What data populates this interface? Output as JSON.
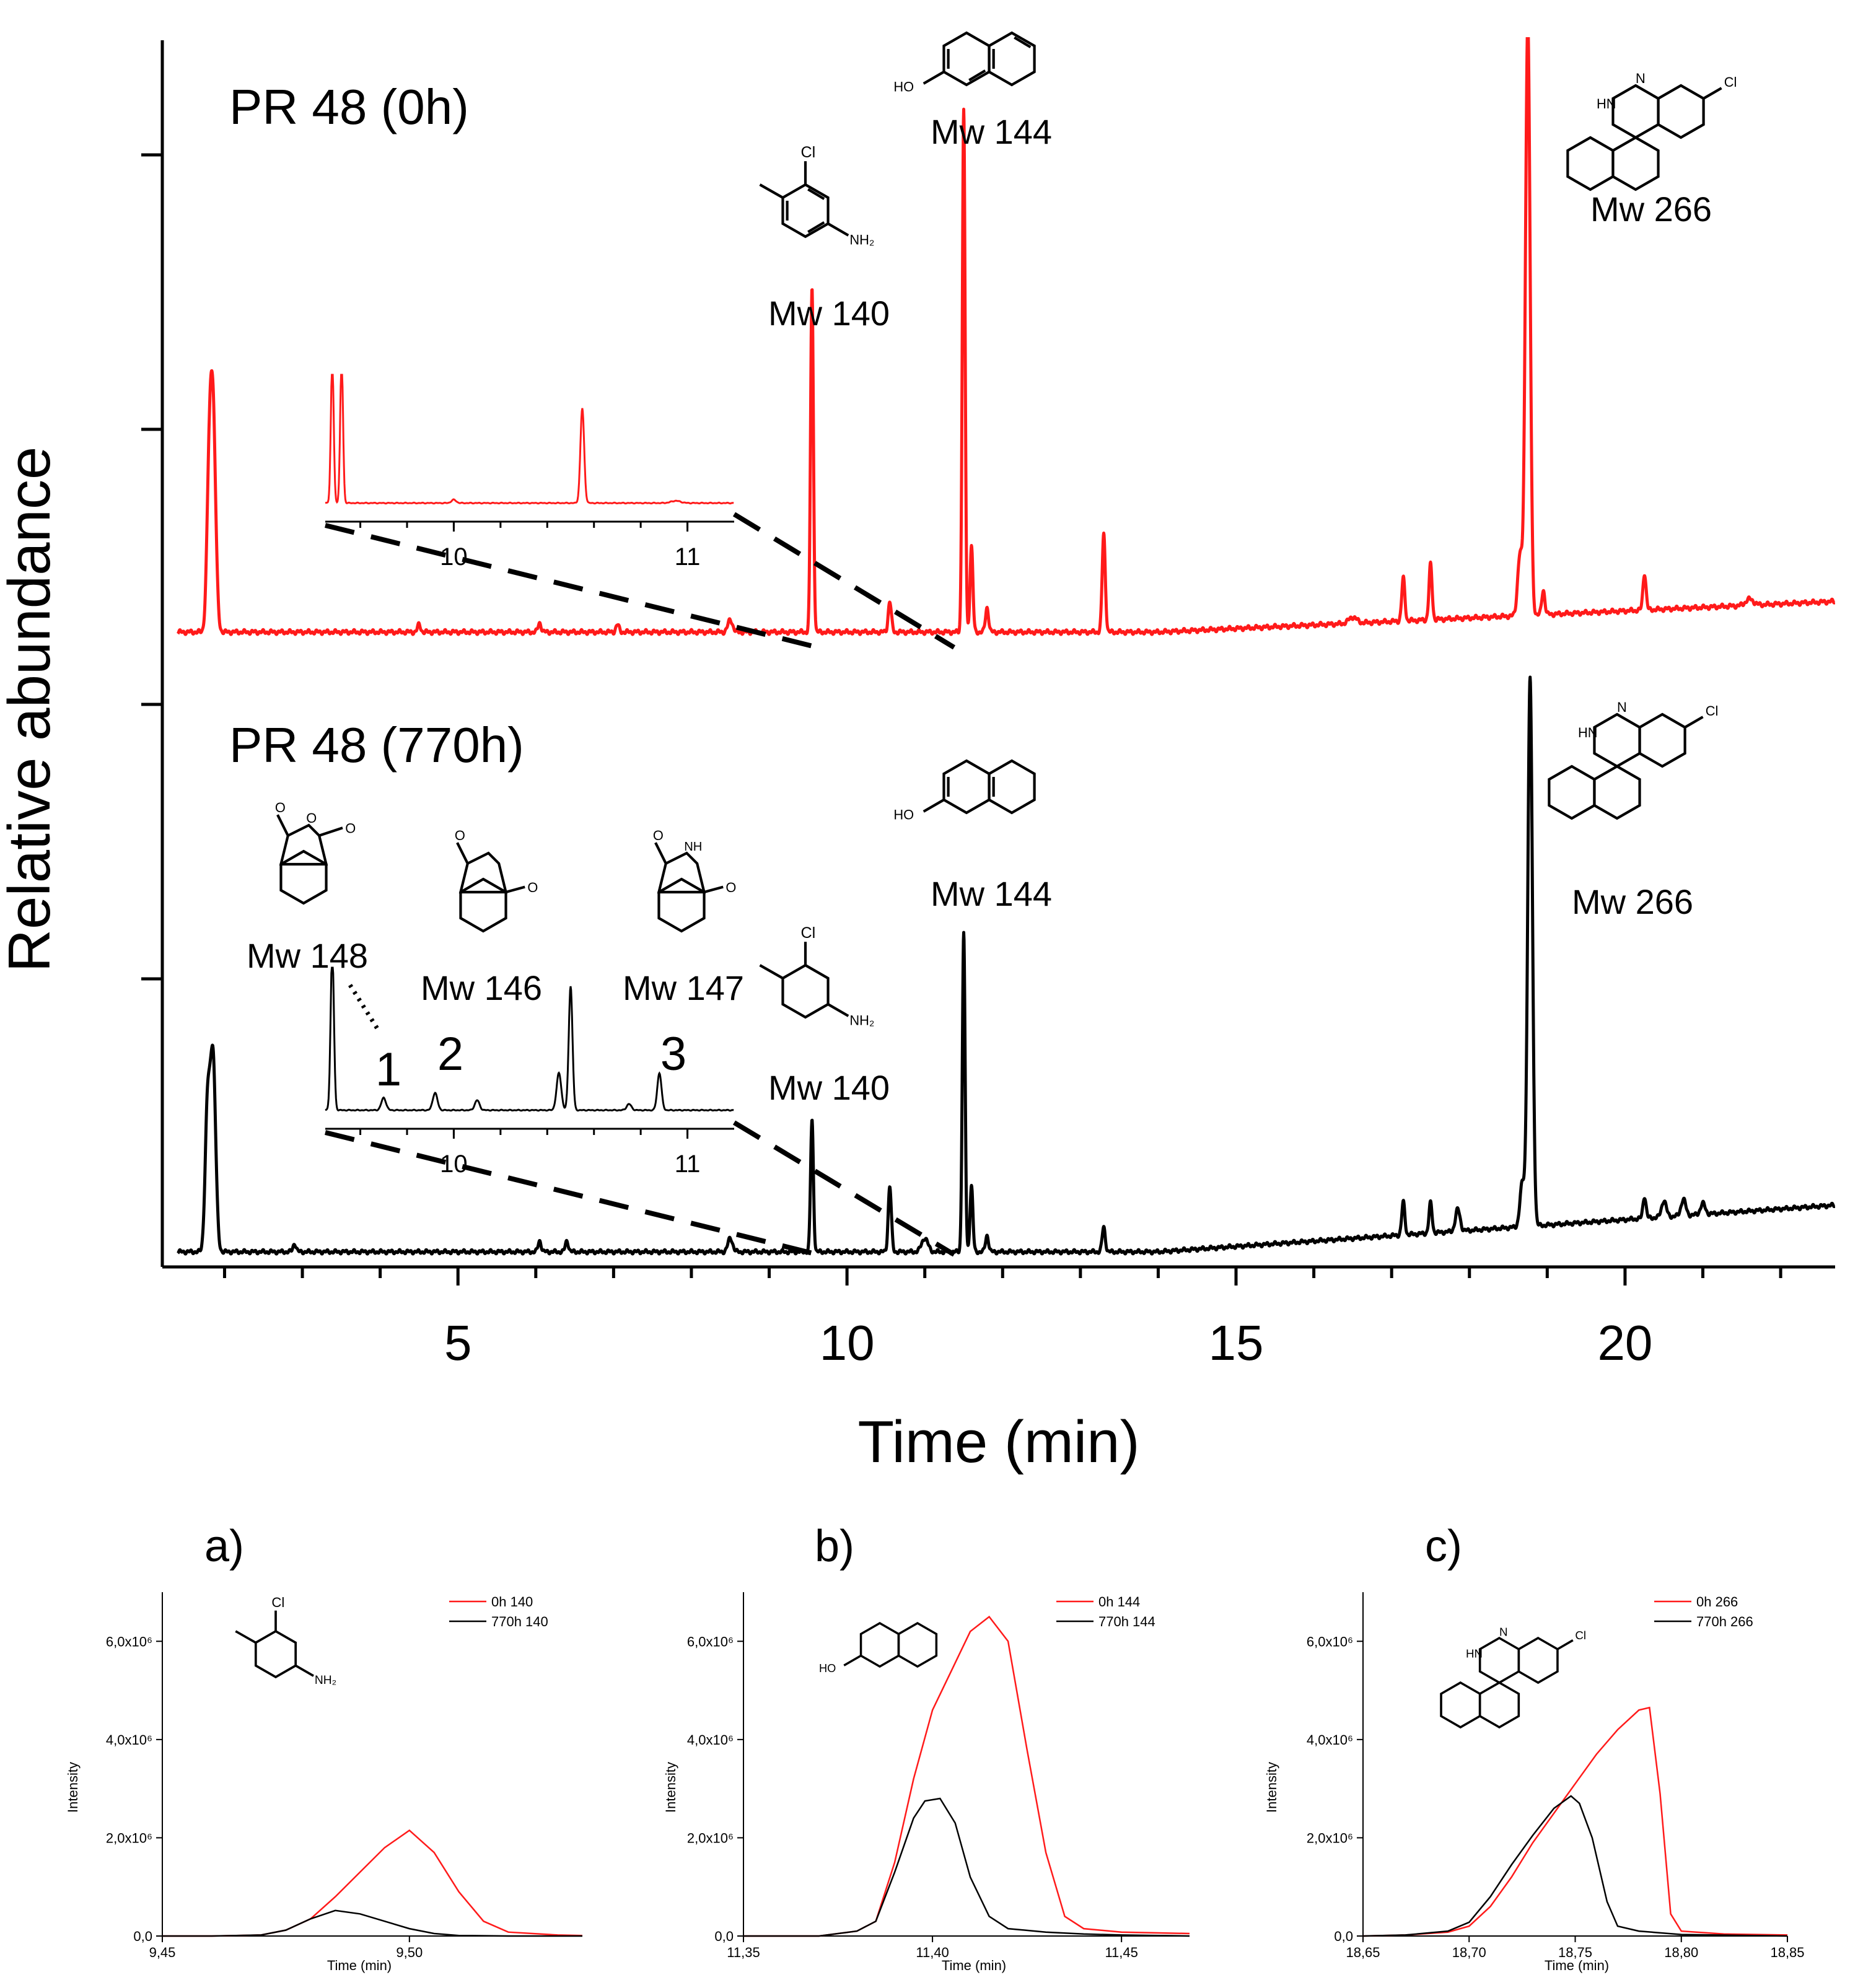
{
  "colors": {
    "red": "#ff1a1a",
    "black": "#000000"
  },
  "chart_data": [
    {
      "type": "line",
      "id": "main",
      "xlabel": "Time (min)",
      "ylabel": "Relative abundance",
      "xlim": [
        1.2,
        22.7
      ],
      "xticks": [
        5,
        10,
        15,
        20
      ],
      "xtick_labels": [
        "5",
        "10",
        "15",
        "20"
      ],
      "series": [
        {
          "name": "PR 48 (0h)",
          "color": "#ff1a1a",
          "label": "PR 48 (0h)",
          "baseline": 0.02,
          "drift": 0.05,
          "peaks": [
            [
              1.85,
              0.36,
              0.035
            ],
            [
              1.8,
              0.2,
              0.03
            ],
            [
              4.5,
              0.012,
              0.02
            ],
            [
              6.05,
              0.015,
              0.02
            ],
            [
              7.05,
              0.012,
              0.02
            ],
            [
              8.5,
              0.02,
              0.03
            ],
            [
              9.55,
              0.56,
              0.018
            ],
            [
              10.55,
              0.05,
              0.02
            ],
            [
              11.5,
              0.85,
              0.018
            ],
            [
              11.6,
              0.14,
              0.018
            ],
            [
              11.8,
              0.04,
              0.02
            ],
            [
              13.3,
              0.16,
              0.02
            ],
            [
              16.5,
              0.01,
              0.05
            ],
            [
              17.15,
              0.07,
              0.02
            ],
            [
              17.5,
              0.09,
              0.02
            ],
            [
              18.75,
              0.97,
              0.03
            ],
            [
              18.65,
              0.1,
              0.03
            ],
            [
              18.95,
              0.04,
              0.02
            ],
            [
              20.25,
              0.06,
              0.02
            ],
            [
              21.6,
              0.01,
              0.05
            ]
          ],
          "annotations": [
            {
              "label": "Mw 140",
              "x": 9.55
            },
            {
              "label": "Mw 144",
              "x": 11.5
            },
            {
              "label": "Mw 266",
              "x": 18.75
            }
          ],
          "inset": {
            "xlim": [
              9.45,
              11.2
            ],
            "xticks": [
              10,
              11
            ],
            "xtick_labels": [
              "10",
              "11"
            ]
          }
        },
        {
          "name": "PR 48 (770h)",
          "color": "#000000",
          "label": "PR 48 (770h)",
          "baseline": 0.005,
          "drift": 0.085,
          "peaks": [
            [
              1.85,
              0.36,
              0.035
            ],
            [
              1.78,
              0.25,
              0.03
            ],
            [
              2.9,
              0.015,
              0.02
            ],
            [
              6.05,
              0.02,
              0.02
            ],
            [
              6.4,
              0.02,
              0.02
            ],
            [
              8.5,
              0.025,
              0.03
            ],
            [
              9.55,
              0.24,
              0.018
            ],
            [
              10.55,
              0.12,
              0.02
            ],
            [
              11.0,
              0.025,
              0.04
            ],
            [
              11.5,
              0.58,
              0.018
            ],
            [
              11.6,
              0.12,
              0.018
            ],
            [
              11.8,
              0.03,
              0.02
            ],
            [
              13.3,
              0.045,
              0.02
            ],
            [
              17.15,
              0.06,
              0.02
            ],
            [
              17.5,
              0.055,
              0.02
            ],
            [
              17.85,
              0.04,
              0.03
            ],
            [
              18.78,
              1.0,
              0.03
            ],
            [
              18.68,
              0.08,
              0.03
            ],
            [
              20.25,
              0.04,
              0.02
            ],
            [
              20.5,
              0.03,
              0.03
            ],
            [
              20.75,
              0.03,
              0.03
            ],
            [
              21.0,
              0.02,
              0.03
            ]
          ],
          "annotations": [
            {
              "label": "Mw 140",
              "x": 9.55
            },
            {
              "label": "Mw 144",
              "x": 11.5
            },
            {
              "label": "Mw 266",
              "x": 18.78
            },
            {
              "label": "Mw 148",
              "peak": "1"
            },
            {
              "label": "Mw 146",
              "peak": "2"
            },
            {
              "label": "Mw 147",
              "peak": "3"
            }
          ],
          "inset": {
            "xlim": [
              9.45,
              11.2
            ],
            "xticks": [
              10,
              11
            ],
            "xtick_labels": [
              "10",
              "11"
            ],
            "peak_numbers": [
              "1",
              "2",
              "3"
            ]
          }
        }
      ]
    },
    {
      "type": "line",
      "id": "a",
      "panel_label": "a)",
      "xlabel": "Time (min)",
      "ylabel": "Intensity",
      "xlim": [
        9.45,
        9.535
      ],
      "ylim": [
        0,
        7000000
      ],
      "xticks": [
        9.45,
        9.5
      ],
      "xtick_labels": [
        "9,45",
        "9,50"
      ],
      "yticks": [
        0,
        2000000,
        4000000,
        6000000
      ],
      "ytick_labels": [
        "0,0",
        "2,0x10⁶",
        "4,0x10⁶",
        "6,0x10⁶"
      ],
      "compound_label": "Mw 140",
      "series": [
        {
          "name": "0h 140",
          "color": "#ff1a1a",
          "x": [
            9.45,
            9.46,
            9.47,
            9.475,
            9.48,
            9.485,
            9.49,
            9.495,
            9.5,
            9.505,
            9.51,
            9.515,
            9.52,
            9.53,
            9.535
          ],
          "values": [
            0,
            0,
            20000,
            120000,
            350000,
            800000,
            1300000,
            1800000,
            2150000,
            1700000,
            900000,
            300000,
            80000,
            20000,
            10000
          ]
        },
        {
          "name": "770h 140",
          "color": "#000000",
          "x": [
            9.45,
            9.46,
            9.47,
            9.475,
            9.48,
            9.485,
            9.49,
            9.495,
            9.5,
            9.505,
            9.51,
            9.52,
            9.53,
            9.535
          ],
          "values": [
            0,
            0,
            20000,
            120000,
            350000,
            520000,
            450000,
            300000,
            150000,
            50000,
            10000,
            0,
            0,
            0
          ]
        }
      ]
    },
    {
      "type": "line",
      "id": "b",
      "panel_label": "b)",
      "xlabel": "Time (min)",
      "ylabel": "Intensity",
      "xlim": [
        11.35,
        11.468
      ],
      "ylim": [
        0,
        7000000
      ],
      "xticks": [
        11.35,
        11.4,
        11.45
      ],
      "xtick_labels": [
        "11,35",
        "11,40",
        "11,45"
      ],
      "yticks": [
        0,
        2000000,
        4000000,
        6000000
      ],
      "ytick_labels": [
        "0,0",
        "2,0x10⁶",
        "4,0x10⁶",
        "6,0x10⁶"
      ],
      "compound_label": "Mw 144",
      "series": [
        {
          "name": "0h 144",
          "color": "#ff1a1a",
          "x": [
            11.35,
            11.37,
            11.38,
            11.385,
            11.39,
            11.395,
            11.4,
            11.405,
            11.41,
            11.415,
            11.42,
            11.425,
            11.43,
            11.435,
            11.44,
            11.45,
            11.468
          ],
          "values": [
            0,
            0,
            100000,
            300000,
            1500000,
            3200000,
            4600000,
            5400000,
            6200000,
            6500000,
            6000000,
            3800000,
            1700000,
            400000,
            150000,
            80000,
            50000
          ]
        },
        {
          "name": "770h 144",
          "color": "#000000",
          "x": [
            11.35,
            11.37,
            11.38,
            11.385,
            11.39,
            11.395,
            11.398,
            11.402,
            11.406,
            11.41,
            11.415,
            11.42,
            11.43,
            11.44,
            11.45,
            11.468
          ],
          "values": [
            0,
            0,
            100000,
            300000,
            1300000,
            2400000,
            2750000,
            2800000,
            2300000,
            1200000,
            400000,
            150000,
            80000,
            40000,
            20000,
            0
          ]
        }
      ]
    },
    {
      "type": "line",
      "id": "c",
      "panel_label": "c)",
      "xlabel": "Time (min)",
      "ylabel": "Intensity",
      "xlim": [
        18.65,
        18.85
      ],
      "ylim": [
        0,
        7000000
      ],
      "xticks": [
        18.65,
        18.7,
        18.75,
        18.8,
        18.85
      ],
      "xtick_labels": [
        "18,65",
        "18,70",
        "18,75",
        "18,80",
        "18,85"
      ],
      "yticks": [
        0,
        2000000,
        4000000,
        6000000
      ],
      "ytick_labels": [
        "0,0",
        "2,0x10⁶",
        "4,0x10⁶",
        "6,0x10⁶"
      ],
      "compound_label": "Mw 266",
      "series": [
        {
          "name": "0h 266",
          "color": "#ff1a1a",
          "x": [
            18.65,
            18.67,
            18.69,
            18.7,
            18.71,
            18.72,
            18.73,
            18.74,
            18.75,
            18.76,
            18.77,
            18.78,
            18.785,
            18.79,
            18.795,
            18.8,
            18.82,
            18.85
          ],
          "values": [
            0,
            20000,
            80000,
            200000,
            600000,
            1200000,
            1900000,
            2500000,
            3100000,
            3700000,
            4200000,
            4600000,
            4650000,
            2900000,
            450000,
            100000,
            40000,
            20000
          ]
        },
        {
          "name": "770h 266",
          "color": "#000000",
          "x": [
            18.65,
            18.67,
            18.69,
            18.7,
            18.71,
            18.72,
            18.73,
            18.74,
            18.748,
            18.752,
            18.758,
            18.765,
            18.77,
            18.78,
            18.8,
            18.85
          ],
          "values": [
            0,
            20000,
            100000,
            280000,
            800000,
            1450000,
            2050000,
            2600000,
            2850000,
            2700000,
            2000000,
            700000,
            200000,
            100000,
            30000,
            0
          ]
        }
      ]
    }
  ]
}
